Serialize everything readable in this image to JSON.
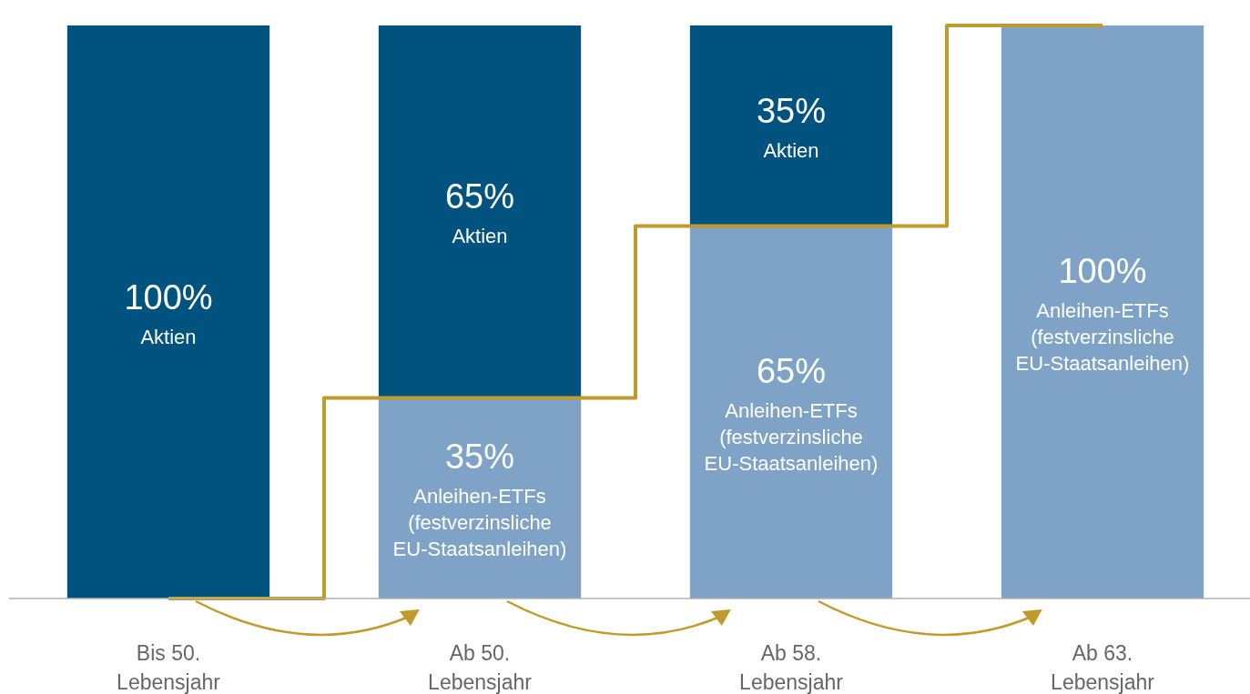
{
  "chart_data": {
    "type": "bar",
    "stacked": true,
    "categories": [
      "Bis 50. Lebensjahr",
      "Ab 50. Lebensjahr",
      "Ab 58. Lebensjahr",
      "Ab 63. Lebensjahr"
    ],
    "ylim": [
      0,
      100
    ],
    "series": [
      {
        "name": "Anleihen-ETFs (festverzinsliche EU-Staatsanleihen)",
        "color": "#7fa3c6",
        "values": [
          0,
          35,
          65,
          100
        ],
        "value_labels": [
          null,
          "35%",
          "65%",
          "100%"
        ]
      },
      {
        "name": "Aktien",
        "color": "#00527f",
        "values": [
          100,
          65,
          35,
          0
        ],
        "value_labels": [
          "100%",
          "65%",
          "35%",
          null
        ]
      },
      {
        "type": "step",
        "color": "#c09a2a",
        "values": [
          0,
          35,
          65,
          100
        ]
      }
    ]
  }
}
